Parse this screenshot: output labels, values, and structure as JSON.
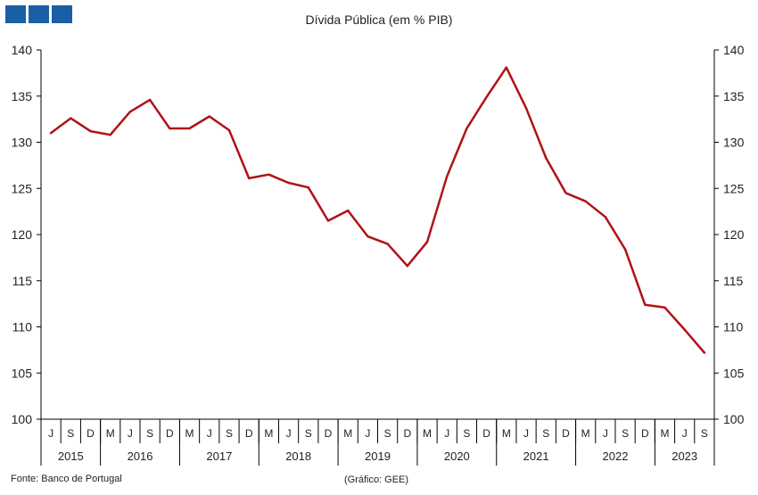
{
  "logo_color": "#1a5ea6",
  "chart_data": {
    "type": "line",
    "title": "Dívida Pública (em % PIB)",
    "xlabel": "",
    "ylabel": "",
    "ylim": [
      100,
      140
    ],
    "yticks": [
      100,
      105,
      110,
      115,
      120,
      125,
      130,
      135,
      140
    ],
    "line_color": "#b01218",
    "categories": [
      "J",
      "S",
      "D",
      "M",
      "J",
      "S",
      "D",
      "M",
      "J",
      "S",
      "D",
      "M",
      "J",
      "S",
      "D",
      "M",
      "J",
      "S",
      "D",
      "M",
      "J",
      "S",
      "D",
      "M",
      "J",
      "S",
      "D",
      "M",
      "J",
      "S",
      "D",
      "M",
      "J",
      "S"
    ],
    "years": [
      {
        "label": "2015",
        "span": 3
      },
      {
        "label": "2016",
        "span": 4
      },
      {
        "label": "2017",
        "span": 4
      },
      {
        "label": "2018",
        "span": 4
      },
      {
        "label": "2019",
        "span": 4
      },
      {
        "label": "2020",
        "span": 4
      },
      {
        "label": "2021",
        "span": 4
      },
      {
        "label": "2022",
        "span": 4
      },
      {
        "label": "2023",
        "span": 3
      }
    ],
    "series": [
      {
        "values": [
          131.0,
          132.6,
          131.2,
          130.8,
          133.3,
          134.6,
          131.5,
          131.5,
          132.8,
          131.3,
          126.1,
          126.5,
          125.6,
          125.1,
          121.5,
          122.6,
          119.8,
          119.0,
          116.6,
          119.2,
          126.3,
          131.5,
          134.9,
          138.1,
          133.7,
          128.3,
          124.5,
          123.6,
          121.9,
          118.4,
          112.4,
          112.1,
          109.7,
          107.2
        ]
      }
    ],
    "footnote_source": "Fonte: Banco de Portugal",
    "footnote_credit": "(Gráfico: GEE)"
  }
}
